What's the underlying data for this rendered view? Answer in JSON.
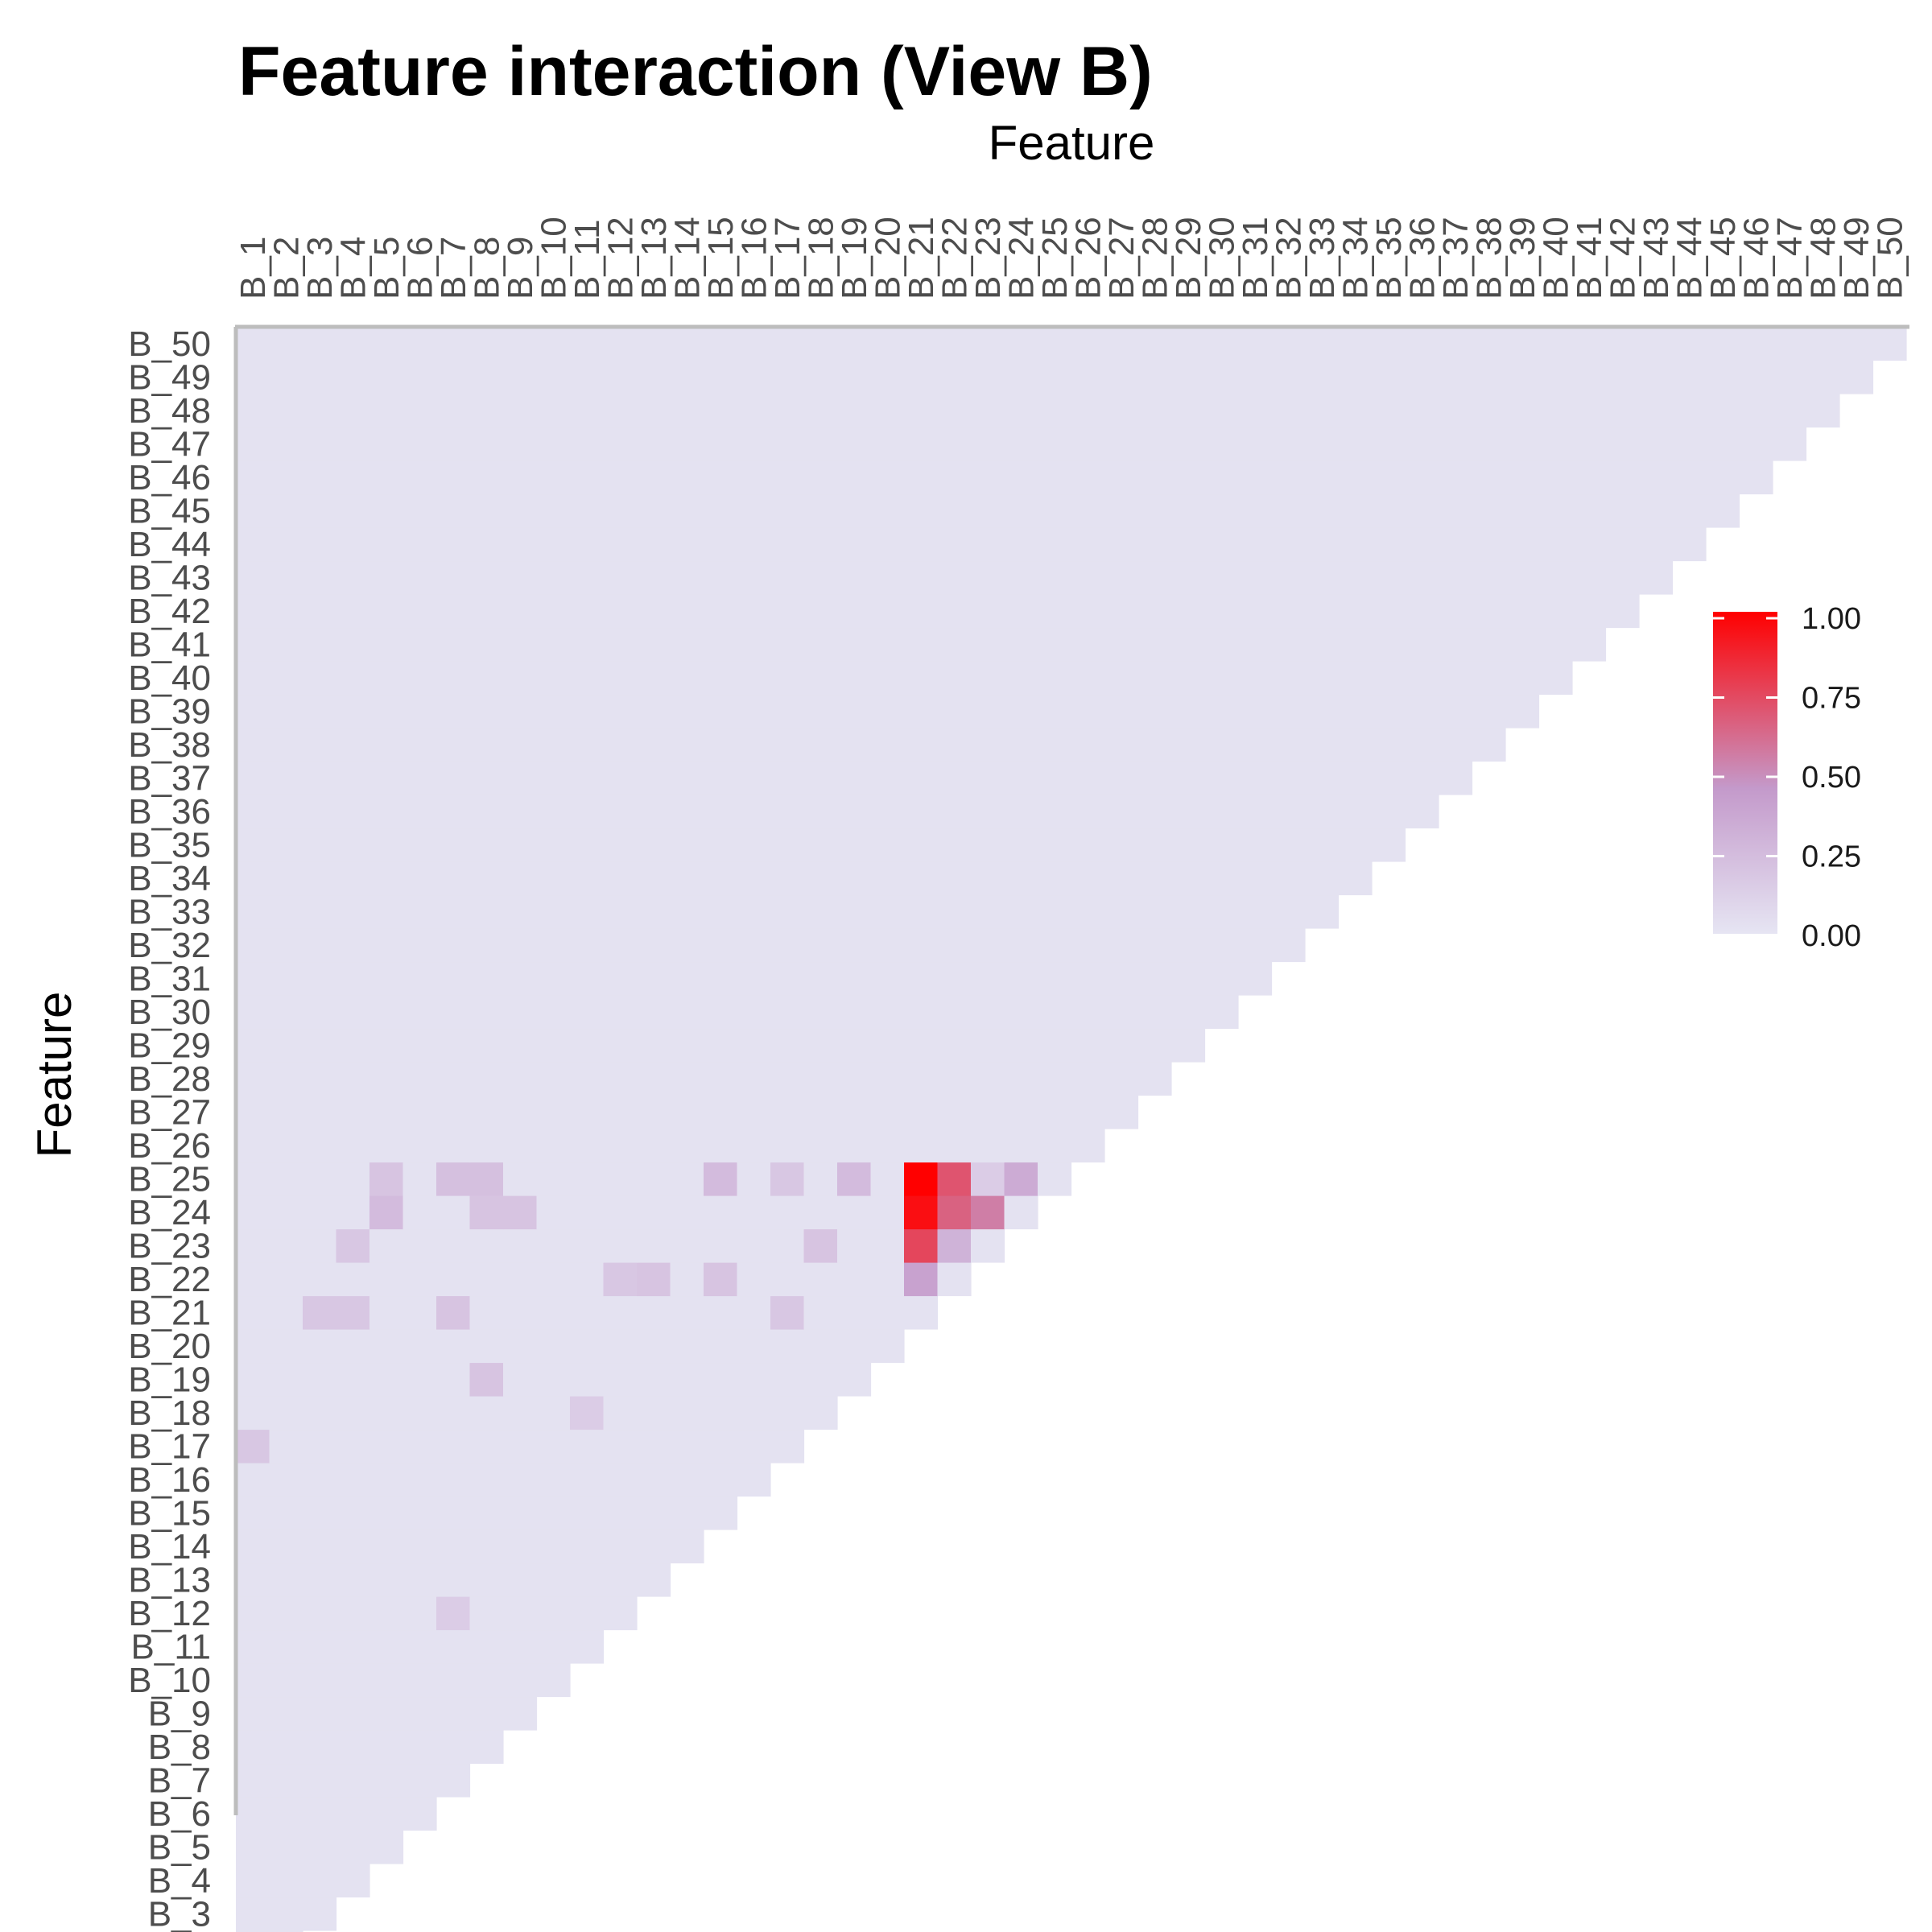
{
  "chart_data": {
    "type": "heatmap",
    "title": "Feature interaction (View B)",
    "xlabel": "Feature",
    "ylabel": "Feature",
    "x_axis_position": "top",
    "layout": "lower-triangle",
    "labels": [
      "B_1",
      "B_2",
      "B_3",
      "B_4",
      "B_5",
      "B_6",
      "B_7",
      "B_8",
      "B_9",
      "B_10",
      "B_11",
      "B_12",
      "B_13",
      "B_14",
      "B_15",
      "B_16",
      "B_17",
      "B_18",
      "B_19",
      "B_20",
      "B_21",
      "B_22",
      "B_23",
      "B_24",
      "B_25",
      "B_26",
      "B_27",
      "B_28",
      "B_29",
      "B_30",
      "B_31",
      "B_32",
      "B_33",
      "B_34",
      "B_35",
      "B_36",
      "B_37",
      "B_38",
      "B_39",
      "B_40",
      "B_41",
      "B_42",
      "B_43",
      "B_44",
      "B_45",
      "B_46",
      "B_47",
      "B_48",
      "B_49",
      "B_50"
    ],
    "value_range": [
      0,
      1
    ],
    "grid": false,
    "legend": {
      "position": "right",
      "ticks": [
        "0.00",
        "0.25",
        "0.50",
        "0.75",
        "1.00"
      ],
      "tick_values": [
        0,
        0.25,
        0.5,
        0.75,
        1.0
      ]
    },
    "colors": {
      "low": "#e6e5f3",
      "mid": "#c49acb",
      "high": "#ff0000",
      "axis_line": "#bdbdbd"
    },
    "default_value": 0.02,
    "highlight_cells": [
      {
        "row": "B_25",
        "col": "B_21",
        "value": 1.0
      },
      {
        "row": "B_24",
        "col": "B_21",
        "value": 0.95
      },
      {
        "row": "B_23",
        "col": "B_21",
        "value": 0.75
      },
      {
        "row": "B_22",
        "col": "B_21",
        "value": 0.4
      },
      {
        "row": "B_25",
        "col": "B_22",
        "value": 0.7
      },
      {
        "row": "B_24",
        "col": "B_22",
        "value": 0.65
      },
      {
        "row": "B_23",
        "col": "B_22",
        "value": 0.3
      },
      {
        "row": "B_25",
        "col": "B_24",
        "value": 0.35
      },
      {
        "row": "B_24",
        "col": "B_23",
        "value": 0.55
      },
      {
        "row": "B_25",
        "col": "B_23",
        "value": 0.15
      },
      {
        "row": "B_25",
        "col": "B_5",
        "value": 0.2
      },
      {
        "row": "B_25",
        "col": "B_7",
        "value": 0.22
      },
      {
        "row": "B_25",
        "col": "B_8",
        "value": 0.22
      },
      {
        "row": "B_25",
        "col": "B_15",
        "value": 0.25
      },
      {
        "row": "B_25",
        "col": "B_17",
        "value": 0.18
      },
      {
        "row": "B_25",
        "col": "B_19",
        "value": 0.25
      },
      {
        "row": "B_24",
        "col": "B_5",
        "value": 0.25
      },
      {
        "row": "B_24",
        "col": "B_8",
        "value": 0.2
      },
      {
        "row": "B_24",
        "col": "B_9",
        "value": 0.2
      },
      {
        "row": "B_23",
        "col": "B_4",
        "value": 0.18
      },
      {
        "row": "B_23",
        "col": "B_18",
        "value": 0.2
      },
      {
        "row": "B_22",
        "col": "B_12",
        "value": 0.18
      },
      {
        "row": "B_22",
        "col": "B_13",
        "value": 0.2
      },
      {
        "row": "B_22",
        "col": "B_15",
        "value": 0.2
      },
      {
        "row": "B_21",
        "col": "B_3",
        "value": 0.18
      },
      {
        "row": "B_21",
        "col": "B_4",
        "value": 0.18
      },
      {
        "row": "B_21",
        "col": "B_7",
        "value": 0.2
      },
      {
        "row": "B_21",
        "col": "B_17",
        "value": 0.18
      },
      {
        "row": "B_19",
        "col": "B_8",
        "value": 0.2
      },
      {
        "row": "B_17",
        "col": "B_1",
        "value": 0.18
      },
      {
        "row": "B_18",
        "col": "B_11",
        "value": 0.15
      },
      {
        "row": "B_12",
        "col": "B_7",
        "value": 0.15
      }
    ]
  }
}
